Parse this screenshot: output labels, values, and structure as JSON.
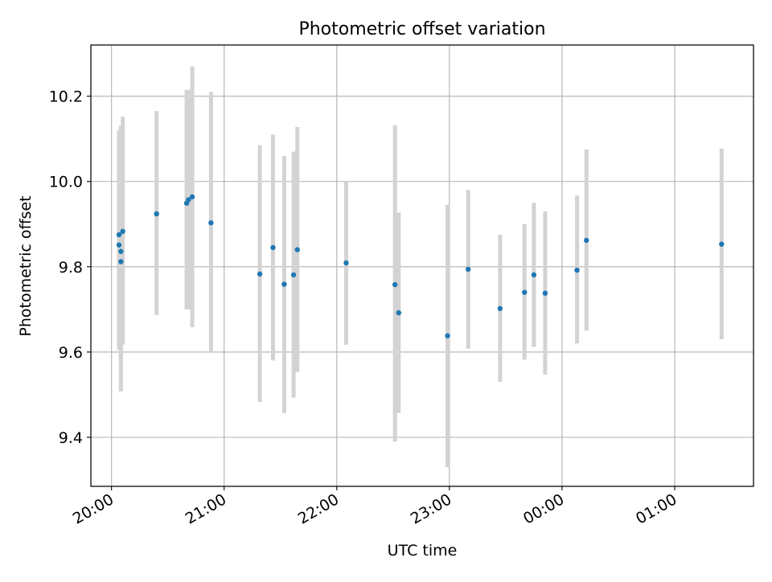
{
  "chart_data": {
    "type": "scatter",
    "title": "Photometric offset variation",
    "xlabel": "UTC time",
    "ylabel": "Photometric offset",
    "x_unit": "hours",
    "x_axis_type": "time",
    "xlim": [
      "19:49",
      "01:42"
    ],
    "ylim": [
      9.285,
      10.32
    ],
    "xticks": [
      "20:00",
      "21:00",
      "22:00",
      "23:00",
      "00:00",
      "01:00"
    ],
    "yticks": [
      9.4,
      9.6,
      9.8,
      10.0,
      10.2
    ],
    "ytick_labels": [
      "9.4",
      "9.6",
      "9.8",
      "10.0",
      "10.2"
    ],
    "grid": true,
    "marker_color": "#1f77b4",
    "errorbar_color": "#d3d3d3",
    "series": [
      {
        "points": [
          {
            "x": "20:04",
            "y": 9.851,
            "ylow": 9.605,
            "yhigh": 10.12
          },
          {
            "x": "20:04",
            "y": 9.875,
            "ylow": 9.617,
            "yhigh": 10.12
          },
          {
            "x": "20:05",
            "y": 9.836,
            "ylow": 9.508,
            "yhigh": 10.13
          },
          {
            "x": "20:05",
            "y": 9.812,
            "ylow": 9.508,
            "yhigh": 10.13
          },
          {
            "x": "20:06",
            "y": 9.883,
            "ylow": 9.617,
            "yhigh": 10.152
          },
          {
            "x": "20:24",
            "y": 9.924,
            "ylow": 9.687,
            "yhigh": 10.165
          },
          {
            "x": "20:40",
            "y": 9.949,
            "ylow": 9.7,
            "yhigh": 10.215
          },
          {
            "x": "20:41",
            "y": 9.957,
            "ylow": 9.7,
            "yhigh": 10.215
          },
          {
            "x": "20:43",
            "y": 9.964,
            "ylow": 9.658,
            "yhigh": 10.27
          },
          {
            "x": "20:53",
            "y": 9.903,
            "ylow": 9.6,
            "yhigh": 10.21
          },
          {
            "x": "21:19",
            "y": 9.783,
            "ylow": 9.483,
            "yhigh": 10.085
          },
          {
            "x": "21:26",
            "y": 9.845,
            "ylow": 9.58,
            "yhigh": 10.11
          },
          {
            "x": "21:32",
            "y": 9.759,
            "ylow": 9.457,
            "yhigh": 10.06
          },
          {
            "x": "21:37",
            "y": 9.781,
            "ylow": 9.493,
            "yhigh": 10.07
          },
          {
            "x": "21:39",
            "y": 9.84,
            "ylow": 9.553,
            "yhigh": 10.128
          },
          {
            "x": "22:05",
            "y": 9.809,
            "ylow": 9.617,
            "yhigh": 10.0
          },
          {
            "x": "22:31",
            "y": 9.758,
            "ylow": 9.39,
            "yhigh": 10.132
          },
          {
            "x": "22:33",
            "y": 9.692,
            "ylow": 9.457,
            "yhigh": 9.927
          },
          {
            "x": "22:59",
            "y": 9.638,
            "ylow": 9.33,
            "yhigh": 9.945
          },
          {
            "x": "23:10",
            "y": 9.794,
            "ylow": 9.608,
            "yhigh": 9.98
          },
          {
            "x": "23:27",
            "y": 9.702,
            "ylow": 9.53,
            "yhigh": 9.875
          },
          {
            "x": "23:40",
            "y": 9.74,
            "ylow": 9.582,
            "yhigh": 9.9
          },
          {
            "x": "23:45",
            "y": 9.781,
            "ylow": 9.612,
            "yhigh": 9.95
          },
          {
            "x": "23:51",
            "y": 9.738,
            "ylow": 9.547,
            "yhigh": 9.93
          },
          {
            "x": "00:08",
            "y": 9.792,
            "ylow": 9.62,
            "yhigh": 9.967
          },
          {
            "x": "00:13",
            "y": 9.862,
            "ylow": 9.65,
            "yhigh": 10.075
          },
          {
            "x": "01:25",
            "y": 9.853,
            "ylow": 9.63,
            "yhigh": 10.077
          }
        ]
      }
    ]
  }
}
